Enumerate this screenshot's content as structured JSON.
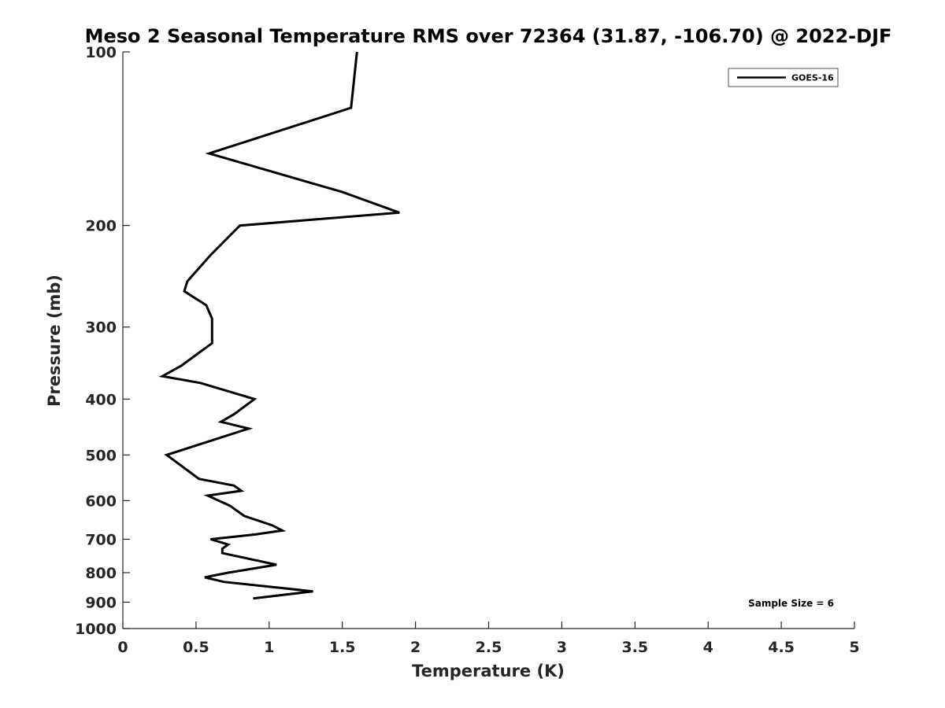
{
  "chart_data": {
    "type": "line",
    "title": "Meso 2 Seasonal Temperature RMS over 72364 (31.87, -106.70) @ 2022-DJF",
    "xlabel": "Temperature (K)",
    "ylabel": "Pressure (mb)",
    "xlim": [
      0,
      5
    ],
    "ylim": [
      100,
      1000
    ],
    "y_scale": "log",
    "y_reversed": true,
    "x_ticks": [
      "0",
      "0.5",
      "1",
      "1.5",
      "2",
      "2.5",
      "3",
      "3.5",
      "4",
      "4.5",
      "5"
    ],
    "y_ticks": [
      "100",
      "200",
      "300",
      "400",
      "500",
      "600",
      "700",
      "800",
      "900",
      "1000"
    ],
    "grid": false,
    "legend_position": "top-right",
    "annotation": "Sample Size = 6",
    "series": [
      {
        "name": "GOES-16",
        "color": "#000000",
        "points": [
          [
            1.6,
            100
          ],
          [
            1.56,
            125
          ],
          [
            0.59,
            150
          ],
          [
            1.5,
            175
          ],
          [
            1.89,
            190
          ],
          [
            0.8,
            200
          ],
          [
            0.6,
            225
          ],
          [
            0.44,
            250
          ],
          [
            0.42,
            260
          ],
          [
            0.57,
            275
          ],
          [
            0.61,
            290
          ],
          [
            0.61,
            320
          ],
          [
            0.4,
            350
          ],
          [
            0.27,
            365
          ],
          [
            0.53,
            375
          ],
          [
            0.9,
            400
          ],
          [
            0.76,
            425
          ],
          [
            0.67,
            438
          ],
          [
            0.86,
            450
          ],
          [
            0.3,
            500
          ],
          [
            0.52,
            550
          ],
          [
            0.76,
            565
          ],
          [
            0.81,
            577
          ],
          [
            0.58,
            588
          ],
          [
            0.73,
            612
          ],
          [
            0.83,
            638
          ],
          [
            1.02,
            662
          ],
          [
            1.09,
            676
          ],
          [
            0.9,
            687
          ],
          [
            0.6,
            700
          ],
          [
            0.72,
            715
          ],
          [
            0.68,
            727
          ],
          [
            0.68,
            740
          ],
          [
            1.05,
            775
          ],
          [
            0.72,
            800
          ],
          [
            0.56,
            815
          ],
          [
            0.69,
            830
          ],
          [
            1.3,
            862
          ],
          [
            0.89,
            887
          ]
        ]
      }
    ]
  }
}
